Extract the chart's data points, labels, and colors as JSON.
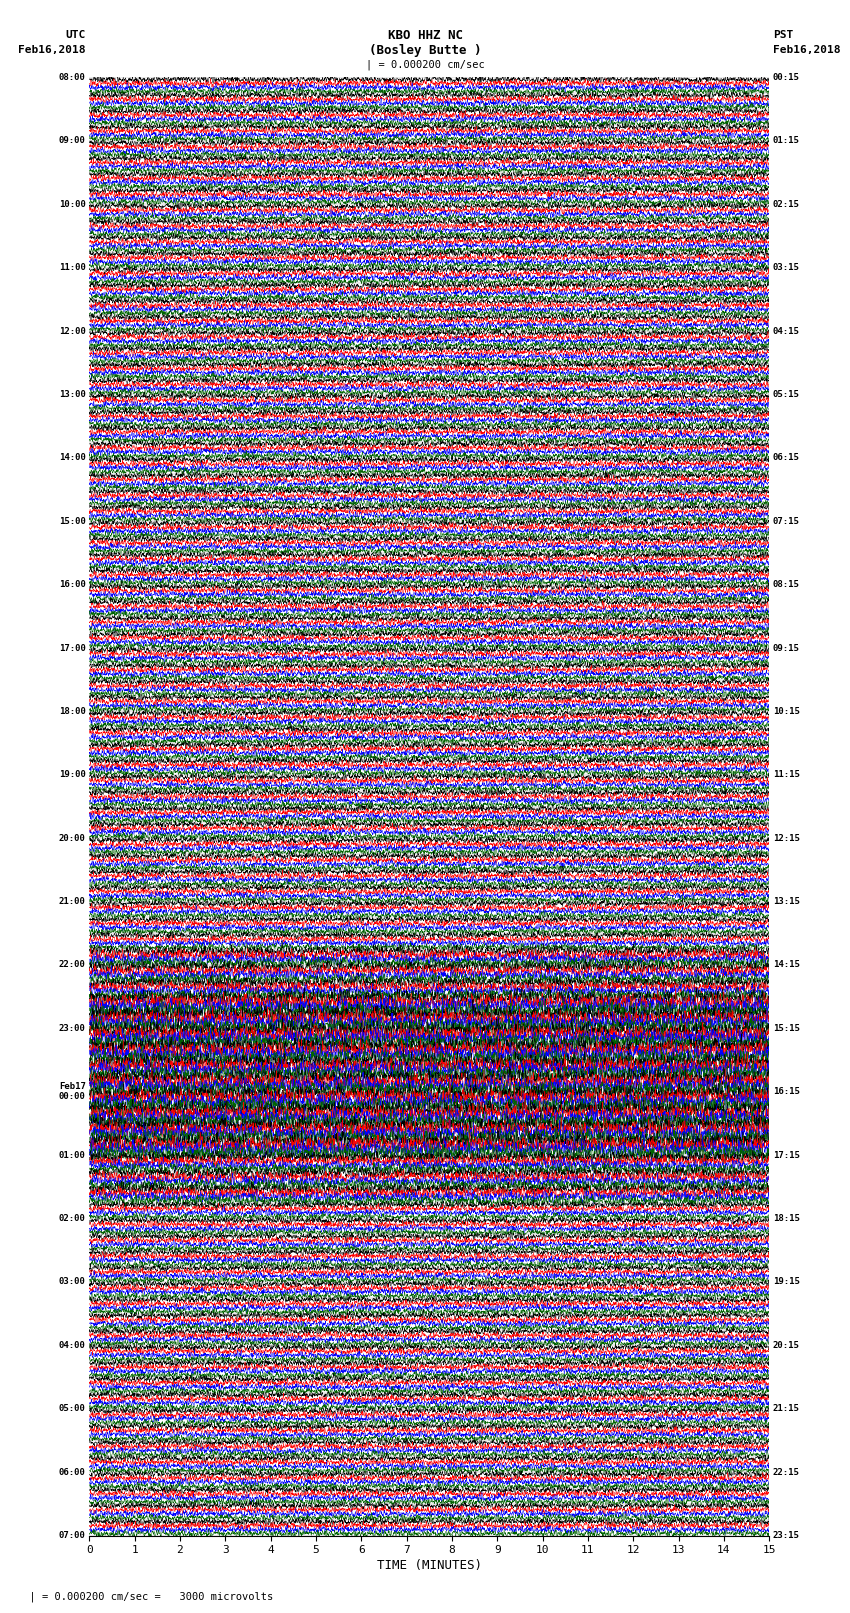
{
  "title_line1": "KBO HHZ NC",
  "title_line2": "(Bosley Butte )",
  "scale_text": "| = 0.000200 cm/sec",
  "left_header_line1": "UTC",
  "left_header_line2": "Feb16,2018",
  "right_header_line1": "PST",
  "right_header_line2": "Feb16,2018",
  "xlabel": "TIME (MINUTES)",
  "bottom_note": "= 0.000200 cm/sec =   3000 microvolts",
  "fig_width": 8.5,
  "fig_height": 16.13,
  "dpi": 100,
  "bg_color": "#ffffff",
  "trace_colors": [
    "#000000",
    "#ff0000",
    "#0000ff",
    "#006400"
  ],
  "left_times": [
    "08:00",
    "",
    "",
    "",
    "09:00",
    "",
    "",
    "",
    "10:00",
    "",
    "",
    "",
    "11:00",
    "",
    "",
    "",
    "12:00",
    "",
    "",
    "",
    "13:00",
    "",
    "",
    "",
    "14:00",
    "",
    "",
    "",
    "15:00",
    "",
    "",
    "",
    "16:00",
    "",
    "",
    "",
    "17:00",
    "",
    "",
    "",
    "18:00",
    "",
    "",
    "",
    "19:00",
    "",
    "",
    "",
    "20:00",
    "",
    "",
    "",
    "21:00",
    "",
    "",
    "",
    "22:00",
    "",
    "",
    "",
    "23:00",
    "",
    "",
    "",
    "Feb17\n00:00",
    "",
    "",
    "",
    "01:00",
    "",
    "",
    "",
    "02:00",
    "",
    "",
    "",
    "03:00",
    "",
    "",
    "",
    "04:00",
    "",
    "",
    "",
    "05:00",
    "",
    "",
    "",
    "06:00",
    "",
    "",
    "",
    "07:00",
    "",
    "",
    ""
  ],
  "right_times": [
    "00:15",
    "",
    "",
    "",
    "01:15",
    "",
    "",
    "",
    "02:15",
    "",
    "",
    "",
    "03:15",
    "",
    "",
    "",
    "04:15",
    "",
    "",
    "",
    "05:15",
    "",
    "",
    "",
    "06:15",
    "",
    "",
    "",
    "07:15",
    "",
    "",
    "",
    "08:15",
    "",
    "",
    "",
    "09:15",
    "",
    "",
    "",
    "10:15",
    "",
    "",
    "",
    "11:15",
    "",
    "",
    "",
    "12:15",
    "",
    "",
    "",
    "13:15",
    "",
    "",
    "",
    "14:15",
    "",
    "",
    "",
    "15:15",
    "",
    "",
    "",
    "16:15",
    "",
    "",
    "",
    "17:15",
    "",
    "",
    "",
    "18:15",
    "",
    "",
    "",
    "19:15",
    "",
    "",
    "",
    "20:15",
    "",
    "",
    "",
    "21:15",
    "",
    "",
    "",
    "22:15",
    "",
    "",
    "",
    "23:15",
    "",
    "",
    ""
  ],
  "num_rows": 92,
  "traces_per_row": 4,
  "x_min": 0,
  "x_max": 15,
  "x_ticks": [
    0,
    1,
    2,
    3,
    4,
    5,
    6,
    7,
    8,
    9,
    10,
    11,
    12,
    13,
    14,
    15
  ]
}
